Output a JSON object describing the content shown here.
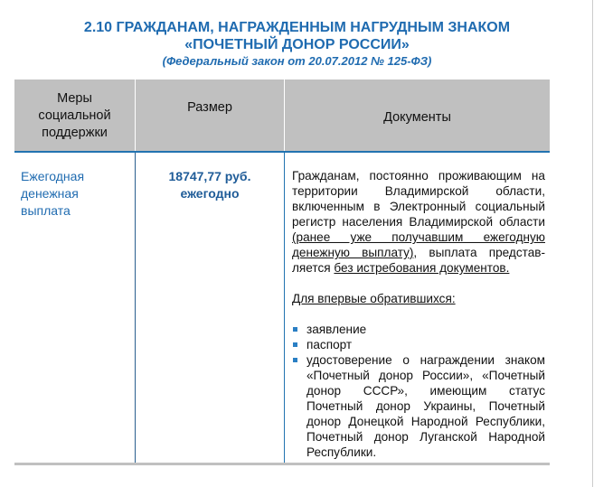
{
  "title": {
    "line1": "2.10 ГРАЖДАНАМ, НАГРАЖДЕННЫМ НАГРУДНЫМ ЗНАКОМ",
    "line2": "«ПОЧЕТНЫЙ ДОНОР РОССИИ»",
    "law": "(Федеральный закон от 20.07.2012 № 125-ФЗ)"
  },
  "table": {
    "headers": [
      "Меры социальной поддержки",
      "Размер",
      "Документы"
    ],
    "row": {
      "measure": "Ежегодная денежная выплата",
      "amount": "18747,77 руб.",
      "period": "ежегодно",
      "doc_p1_a": "Гражданам, постоянно проживающим на территории Владимирской области, включенным в Электронный социальный регистр населения Владимирской обла­сти ",
      "doc_p1_u1": "(ранее уже получавшим ежегодную денежную выплату)",
      "doc_p1_b": ", выплата представ­ляется ",
      "doc_p1_u2": "без истребования документов.",
      "first_time": "Для впервые обратившихся:",
      "items": [
        "заявление",
        "паспорт",
        "удостоверение о награждении зна­ком «Почетный донор России», «Почетный донор СССР», имеющим статус Почетный донор Украины, Почетный донор Донецкой Народной Республики, Почетный донор Луган­ской Народной Республики."
      ]
    }
  },
  "colors": {
    "accent": "#1f6bb0",
    "header_bg": "#c0c0c0",
    "bullet": "#2a7fc4"
  }
}
